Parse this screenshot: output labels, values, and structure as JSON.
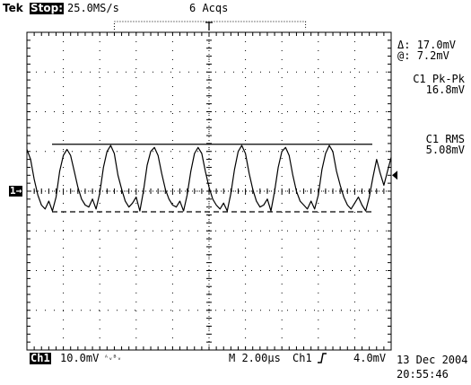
{
  "header": {
    "brand": "Tek",
    "run_state": "Stop:",
    "sample_rate": "25.0MS/s",
    "acquisitions": "6 Acqs"
  },
  "readouts": {
    "cursor_delta_label": "Δ:",
    "cursor_delta_value": "17.0mV",
    "cursor_at_label": "@:",
    "cursor_at_value": "7.2mV",
    "meas1_label": "C1 Pk-Pk",
    "meas1_value": "16.8mV",
    "meas2_label": "C1 RMS",
    "meas2_value": "5.08mV"
  },
  "channel_marker": "1→",
  "footer": {
    "channel": "Ch1",
    "volts_per_div": "10.0mV",
    "bw_symbol": "ᴬᵥᴮᵥ",
    "timebase": "M 2.00µs",
    "trigger_source": "Ch1",
    "trigger_slope_icon": "rising-edge-icon",
    "trigger_level": "4.0mV",
    "date": "13 Dec 2004",
    "time": "20:55:46"
  },
  "colors": {
    "trace": "#000000",
    "graticule": "#000000",
    "background": "#ffffff"
  },
  "chart_data": {
    "type": "line",
    "title": "",
    "xlabel": "",
    "ylabel": "",
    "x_unit": "µs",
    "y_unit": "mV",
    "xlim": [
      -10,
      10
    ],
    "ylim": [
      -40,
      40
    ],
    "grid": true,
    "cursors_mV": {
      "upper": 11.8,
      "lower": -5.2
    },
    "series": [
      {
        "x": [
          -10.0,
          -9.8,
          -9.6,
          -9.4,
          -9.2,
          -9.0,
          -8.8,
          -8.6,
          -8.4,
          -8.2,
          -8.0,
          -7.8,
          -7.6,
          -7.4,
          -7.2,
          -7.0,
          -6.8,
          -6.6,
          -6.4,
          -6.2,
          -6.0,
          -5.8,
          -5.6,
          -5.4,
          -5.2,
          -5.0,
          -4.8,
          -4.6,
          -4.4,
          -4.2,
          -4.0,
          -3.8,
          -3.6,
          -3.4,
          -3.2,
          -3.0,
          -2.8,
          -2.6,
          -2.4,
          -2.2,
          -2.0,
          -1.8,
          -1.6,
          -1.4,
          -1.2,
          -1.0,
          -0.8,
          -0.6,
          -0.4,
          -0.2,
          0.0,
          0.2,
          0.4,
          0.6,
          0.8,
          1.0,
          1.2,
          1.4,
          1.6,
          1.8,
          2.0,
          2.2,
          2.4,
          2.6,
          2.8,
          3.0,
          3.2,
          3.4,
          3.6,
          3.8,
          4.0,
          4.2,
          4.4,
          4.6,
          4.8,
          5.0,
          5.2,
          5.4,
          5.6,
          5.8,
          6.0,
          6.2,
          6.4,
          6.6,
          6.8,
          7.0,
          7.2,
          7.4,
          7.6,
          7.8,
          8.0,
          8.2,
          8.4,
          8.6,
          8.8,
          9.0,
          9.2,
          9.4,
          9.6,
          9.8,
          10.0
        ],
        "y": [
          10.5,
          8.0,
          3.0,
          -1.0,
          -3.5,
          -4.5,
          -2.5,
          -5.0,
          -1.5,
          5.0,
          9.0,
          10.5,
          9.0,
          5.0,
          1.0,
          -2.0,
          -3.5,
          -4.0,
          -2.0,
          -4.5,
          -0.5,
          6.0,
          10.0,
          11.5,
          9.5,
          4.0,
          0.5,
          -2.5,
          -4.0,
          -3.0,
          -1.5,
          -5.0,
          0.0,
          6.5,
          10.0,
          11.0,
          9.0,
          4.5,
          0.5,
          -2.0,
          -3.5,
          -4.0,
          -2.5,
          -5.0,
          -1.0,
          5.0,
          9.5,
          11.0,
          9.5,
          5.0,
          1.0,
          -2.0,
          -3.5,
          -4.5,
          -3.0,
          -5.0,
          -0.5,
          5.5,
          10.0,
          11.5,
          9.5,
          4.5,
          0.5,
          -2.5,
          -4.0,
          -3.5,
          -2.0,
          -5.0,
          0.0,
          6.0,
          10.0,
          11.0,
          9.0,
          4.0,
          0.0,
          -2.5,
          -3.5,
          -4.5,
          -2.5,
          -4.5,
          -1.0,
          5.5,
          9.5,
          11.5,
          10.0,
          5.0,
          1.5,
          -1.5,
          -3.5,
          -4.5,
          -3.0,
          -1.5,
          -3.5,
          -5.0,
          -1.5,
          3.5,
          8.0,
          4.5,
          1.5,
          5.0,
          8.5
        ]
      }
    ]
  }
}
